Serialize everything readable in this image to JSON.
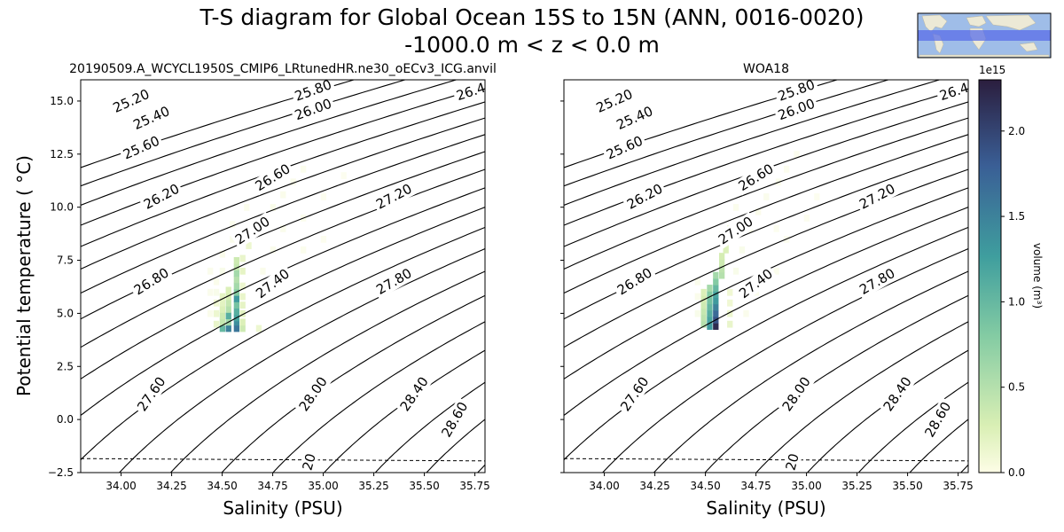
{
  "header": {
    "title_line1": "T-S diagram for Global Ocean 15S to 15N (ANN, 0016-0020)",
    "title_line2": "-1000.0 m < z < 0.0 m"
  },
  "colors": {
    "low": "#fdfde6",
    "mid1": "#d9efb4",
    "mid2": "#83cba3",
    "mid3": "#3f9e9e",
    "mid4": "#3a5f96",
    "high": "#2b1e3e",
    "map_ocean": "#9fbde8",
    "map_band": "#5a6ee8",
    "map_land": "#ece9d6"
  },
  "chart_data": [
    {
      "type": "heatmap",
      "name": "model",
      "title": "20190509.A_WCYCL1950S_CMIP6_LRtunedHR.ne30_oECv3_ICG.anvil",
      "xlabel": "Salinity (PSU)",
      "ylabel": "Potential temperature ( °C)",
      "xlim": [
        33.8,
        35.8
      ],
      "ylim": [
        -2.5,
        16
      ],
      "xticks": [
        "34.00",
        "34.25",
        "34.50",
        "34.75",
        "35.00",
        "35.25",
        "35.50",
        "35.75"
      ],
      "yticks": [
        "−2.5",
        "0.0",
        "2.5",
        "5.0",
        "7.5",
        "10.0",
        "12.5",
        "15.0"
      ],
      "freezing_line": [
        [
          33.8,
          -1.84
        ],
        [
          35.8,
          -1.95
        ]
      ],
      "isopycnal_levels": [
        25.2,
        25.4,
        25.6,
        25.8,
        26.0,
        26.2,
        26.4,
        26.6,
        26.8,
        27.0,
        27.2,
        27.4,
        27.6,
        27.8,
        28.0,
        28.2,
        28.4,
        28.6,
        28.8,
        29.0
      ],
      "isopycnal_labels": [
        "25.20",
        "25.40",
        "25.60",
        "25.80",
        "26.00",
        "26.20",
        "26.40",
        "26.60",
        "26.80",
        "27.00",
        "27.20",
        "27.40",
        "27.80",
        "27.60",
        "28.00",
        "28.40",
        "28.60",
        "20"
      ],
      "cells": [
        [
          34.57,
          4.3,
          1.6
        ],
        [
          34.57,
          4.6,
          1.4
        ],
        [
          34.57,
          4.8,
          1.2
        ],
        [
          34.57,
          5.1,
          1.1
        ],
        [
          34.57,
          5.4,
          0.9
        ],
        [
          34.57,
          5.7,
          1.3
        ],
        [
          34.57,
          6.0,
          0.8
        ],
        [
          34.57,
          6.3,
          0.6
        ],
        [
          34.57,
          6.6,
          0.5
        ],
        [
          34.57,
          6.9,
          0.6
        ],
        [
          34.57,
          7.2,
          0.4
        ],
        [
          34.57,
          7.5,
          0.35
        ],
        [
          34.53,
          4.3,
          1.5
        ],
        [
          34.53,
          4.6,
          0.6
        ],
        [
          34.53,
          4.9,
          1.1
        ],
        [
          34.53,
          5.2,
          0.5
        ],
        [
          34.53,
          5.5,
          0.4
        ],
        [
          34.53,
          5.8,
          0.3
        ],
        [
          34.53,
          6.1,
          0.25
        ],
        [
          34.5,
          4.3,
          1.0
        ],
        [
          34.5,
          4.6,
          0.4
        ],
        [
          34.5,
          4.9,
          0.35
        ],
        [
          34.5,
          5.2,
          0.25
        ],
        [
          34.5,
          5.5,
          0.2
        ],
        [
          34.5,
          5.8,
          0.18
        ],
        [
          34.6,
          4.3,
          0.35
        ],
        [
          34.6,
          4.6,
          0.25
        ],
        [
          34.6,
          5.0,
          0.2
        ],
        [
          34.6,
          5.4,
          0.18
        ],
        [
          34.6,
          5.8,
          0.15
        ],
        [
          34.6,
          6.3,
          0.12
        ],
        [
          34.6,
          7.0,
          0.18
        ],
        [
          34.6,
          7.6,
          0.15
        ],
        [
          34.63,
          8.2,
          0.12
        ],
        [
          34.66,
          8.8,
          0.1
        ],
        [
          34.7,
          9.4,
          0.08
        ],
        [
          34.75,
          10.0,
          0.07
        ],
        [
          34.8,
          10.6,
          0.06
        ],
        [
          34.85,
          11.2,
          0.05
        ],
        [
          34.9,
          11.8,
          0.04
        ],
        [
          34.47,
          4.5,
          0.15
        ],
        [
          34.47,
          5.0,
          0.12
        ],
        [
          34.47,
          5.5,
          0.1
        ],
        [
          34.47,
          6.0,
          0.08
        ],
        [
          34.47,
          6.5,
          0.06
        ],
        [
          34.44,
          5.0,
          0.06
        ],
        [
          34.44,
          6.0,
          0.05
        ],
        [
          34.44,
          7.0,
          0.05
        ],
        [
          34.5,
          7.0,
          0.08
        ],
        [
          34.5,
          7.8,
          0.06
        ],
        [
          34.55,
          8.5,
          0.06
        ],
        [
          34.68,
          4.3,
          0.12
        ],
        [
          34.7,
          7.0,
          0.06
        ],
        [
          34.75,
          8.0,
          0.05
        ],
        [
          34.8,
          9.0,
          0.05
        ],
        [
          34.9,
          9.5,
          0.04
        ],
        [
          35.0,
          10.5,
          0.03
        ],
        [
          35.0,
          8.5,
          0.03
        ],
        [
          34.9,
          8.0,
          0.04
        ],
        [
          34.62,
          10.0,
          0.04
        ],
        [
          34.55,
          9.2,
          0.04
        ],
        [
          35.1,
          11.5,
          0.02
        ]
      ]
    },
    {
      "type": "heatmap",
      "name": "obs",
      "title": "WOA18",
      "xlabel": "Salinity (PSU)",
      "xlim": [
        33.8,
        35.8
      ],
      "ylim": [
        -2.5,
        16
      ],
      "xticks": [
        "34.00",
        "34.25",
        "34.50",
        "34.75",
        "35.00",
        "35.25",
        "35.50",
        "35.75"
      ],
      "freezing_line": [
        [
          33.8,
          -1.84
        ],
        [
          35.8,
          -1.95
        ]
      ],
      "isopycnal_levels": [
        25.2,
        25.4,
        25.6,
        25.8,
        26.0,
        26.2,
        26.4,
        26.6,
        26.8,
        27.0,
        27.2,
        27.4,
        27.6,
        27.8,
        28.0,
        28.2,
        28.4,
        28.6,
        28.8,
        29.0
      ],
      "isopycnal_labels": [
        "25.20",
        "25.40",
        "25.60",
        "25.80",
        "26.00",
        "26.20",
        "26.40",
        "26.60",
        "26.80",
        "27.00",
        "27.20",
        "27.40",
        "27.80",
        "27.60",
        "28.00",
        "28.40",
        "28.60",
        "20"
      ],
      "cells": [
        [
          34.55,
          4.4,
          2.2
        ],
        [
          34.55,
          4.7,
          1.9
        ],
        [
          34.55,
          5.0,
          1.7
        ],
        [
          34.55,
          5.3,
          1.5
        ],
        [
          34.55,
          5.6,
          1.3
        ],
        [
          34.55,
          5.9,
          1.2
        ],
        [
          34.55,
          6.2,
          1.0
        ],
        [
          34.55,
          6.5,
          0.8
        ],
        [
          34.55,
          6.8,
          0.6
        ],
        [
          34.52,
          4.4,
          1.3
        ],
        [
          34.52,
          4.7,
          1.2
        ],
        [
          34.52,
          5.0,
          1.1
        ],
        [
          34.52,
          5.3,
          1.0
        ],
        [
          34.52,
          5.6,
          0.9
        ],
        [
          34.52,
          5.9,
          0.8
        ],
        [
          34.52,
          6.2,
          0.6
        ],
        [
          34.49,
          4.5,
          0.5
        ],
        [
          34.49,
          4.8,
          0.45
        ],
        [
          34.49,
          5.1,
          0.4
        ],
        [
          34.49,
          5.4,
          0.35
        ],
        [
          34.49,
          5.7,
          0.3
        ],
        [
          34.49,
          6.0,
          0.25
        ],
        [
          34.58,
          6.8,
          0.5
        ],
        [
          34.58,
          7.1,
          0.45
        ],
        [
          34.58,
          7.4,
          0.35
        ],
        [
          34.58,
          7.7,
          0.3
        ],
        [
          34.6,
          8.0,
          0.25
        ],
        [
          34.6,
          8.3,
          0.2
        ],
        [
          34.58,
          8.7,
          0.15
        ],
        [
          34.62,
          9.0,
          0.12
        ],
        [
          34.62,
          4.5,
          0.15
        ],
        [
          34.62,
          5.0,
          0.12
        ],
        [
          34.62,
          5.5,
          0.1
        ],
        [
          34.62,
          6.0,
          0.1
        ],
        [
          34.65,
          7.0,
          0.08
        ],
        [
          34.68,
          8.0,
          0.08
        ],
        [
          34.72,
          9.0,
          0.07
        ],
        [
          34.76,
          9.8,
          0.06
        ],
        [
          34.8,
          10.5,
          0.05
        ],
        [
          34.86,
          11.2,
          0.04
        ],
        [
          34.9,
          11.8,
          0.03
        ],
        [
          34.95,
          12.5,
          0.02
        ],
        [
          34.46,
          5.0,
          0.08
        ],
        [
          34.46,
          5.8,
          0.06
        ],
        [
          34.46,
          6.5,
          0.05
        ],
        [
          34.7,
          5.0,
          0.05
        ],
        [
          34.75,
          6.0,
          0.04
        ],
        [
          34.85,
          7.0,
          0.04
        ],
        [
          34.9,
          8.5,
          0.03
        ],
        [
          35.0,
          9.5,
          0.03
        ],
        [
          34.85,
          9.0,
          0.03
        ],
        [
          34.65,
          10.0,
          0.04
        ],
        [
          35.05,
          10.5,
          0.02
        ]
      ]
    }
  ],
  "colorbar": {
    "label": "volume (m³)",
    "exponent": "1e15",
    "min": 0.0,
    "max": 2.3,
    "ticks": [
      "0.0",
      "0.5",
      "1.0",
      "1.5",
      "2.0"
    ],
    "tick_values": [
      0.0,
      0.5,
      1.0,
      1.5,
      2.0
    ]
  },
  "inset_map": {
    "region": "Global Ocean 15S to 15N",
    "band_lat": [
      -15,
      15
    ]
  }
}
